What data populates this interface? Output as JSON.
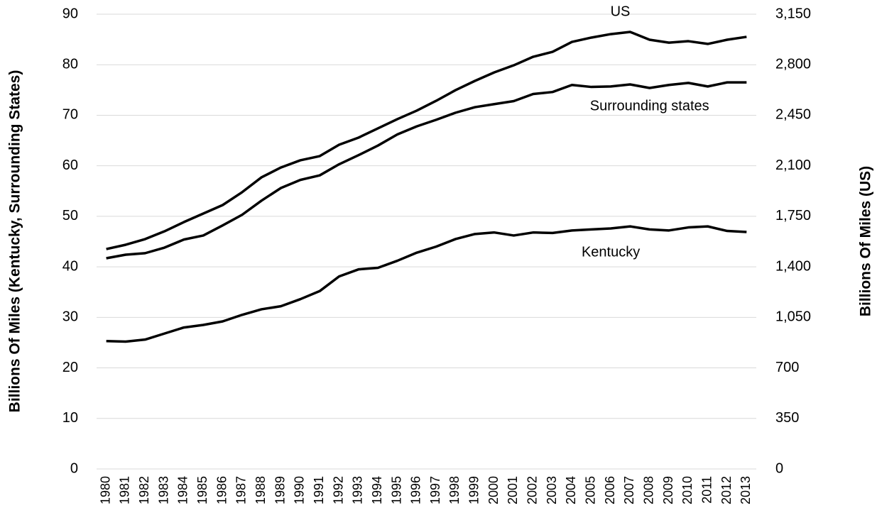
{
  "chart_data": {
    "type": "line",
    "y_label": "Billions Of Miles (Kentucky, Surrounding States)",
    "y2_label": "Billions Of Miles (US)",
    "x": [
      1980,
      1981,
      1982,
      1983,
      1984,
      1985,
      1986,
      1987,
      1988,
      1989,
      1990,
      1991,
      1992,
      1993,
      1994,
      1995,
      1996,
      1997,
      1998,
      1999,
      2000,
      2001,
      2002,
      2003,
      2004,
      2005,
      2006,
      2007,
      2008,
      2009,
      2010,
      2011,
      2012,
      2013
    ],
    "series": [
      {
        "name": "US",
        "color": "#000000",
        "axis": "y2",
        "values": [
          1523,
          1553,
          1592,
          1646,
          1710,
          1769,
          1828,
          1917,
          2020,
          2088,
          2138,
          2167,
          2246,
          2295,
          2359,
          2423,
          2482,
          2550,
          2624,
          2688,
          2747,
          2796,
          2855,
          2889,
          2958,
          2988,
          3012,
          3027,
          2973,
          2953,
          2963,
          2944,
          2973,
          2993
        ]
      },
      {
        "name": "Surrounding states",
        "color": "#000000",
        "values": [
          41.7,
          42.4,
          42.7,
          43.8,
          45.4,
          46.2,
          48.2,
          50.3,
          53.1,
          55.6,
          57.2,
          58.1,
          60.3,
          62.1,
          64.0,
          66.2,
          67.8,
          69.1,
          70.5,
          71.6,
          72.2,
          72.8,
          74.2,
          74.6,
          76.0,
          75.6,
          75.7,
          76.1,
          75.4,
          76.0,
          76.4,
          75.7,
          76.5,
          76.5
        ]
      },
      {
        "name": "Kentucky",
        "color": "#000000",
        "values": [
          25.3,
          25.2,
          25.6,
          26.8,
          28.0,
          28.5,
          29.2,
          30.5,
          31.6,
          32.2,
          33.6,
          35.2,
          38.1,
          39.5,
          39.8,
          41.2,
          42.8,
          44.0,
          45.5,
          46.5,
          46.8,
          46.2,
          46.8,
          46.7,
          47.2,
          47.4,
          47.6,
          48.0,
          47.4,
          47.2,
          47.8,
          48.0,
          47.1,
          46.9
        ]
      }
    ],
    "ylim": [
      0,
      90
    ],
    "yticks": [
      0,
      10,
      20,
      30,
      40,
      50,
      60,
      70,
      80,
      90
    ],
    "y2lim": [
      0,
      3150
    ],
    "y2ticks": [
      0,
      350,
      700,
      {
        "value": 1050,
        "label": "1,050"
      },
      {
        "value": 1400,
        "label": "1,400"
      },
      {
        "value": 1750,
        "label": "1,750"
      },
      {
        "value": 2100,
        "label": "2,100"
      },
      {
        "value": 2450,
        "label": "2,450"
      },
      {
        "value": 2800,
        "label": "2,800"
      },
      {
        "value": 3150,
        "label": "3,150"
      }
    ],
    "grid": true
  }
}
